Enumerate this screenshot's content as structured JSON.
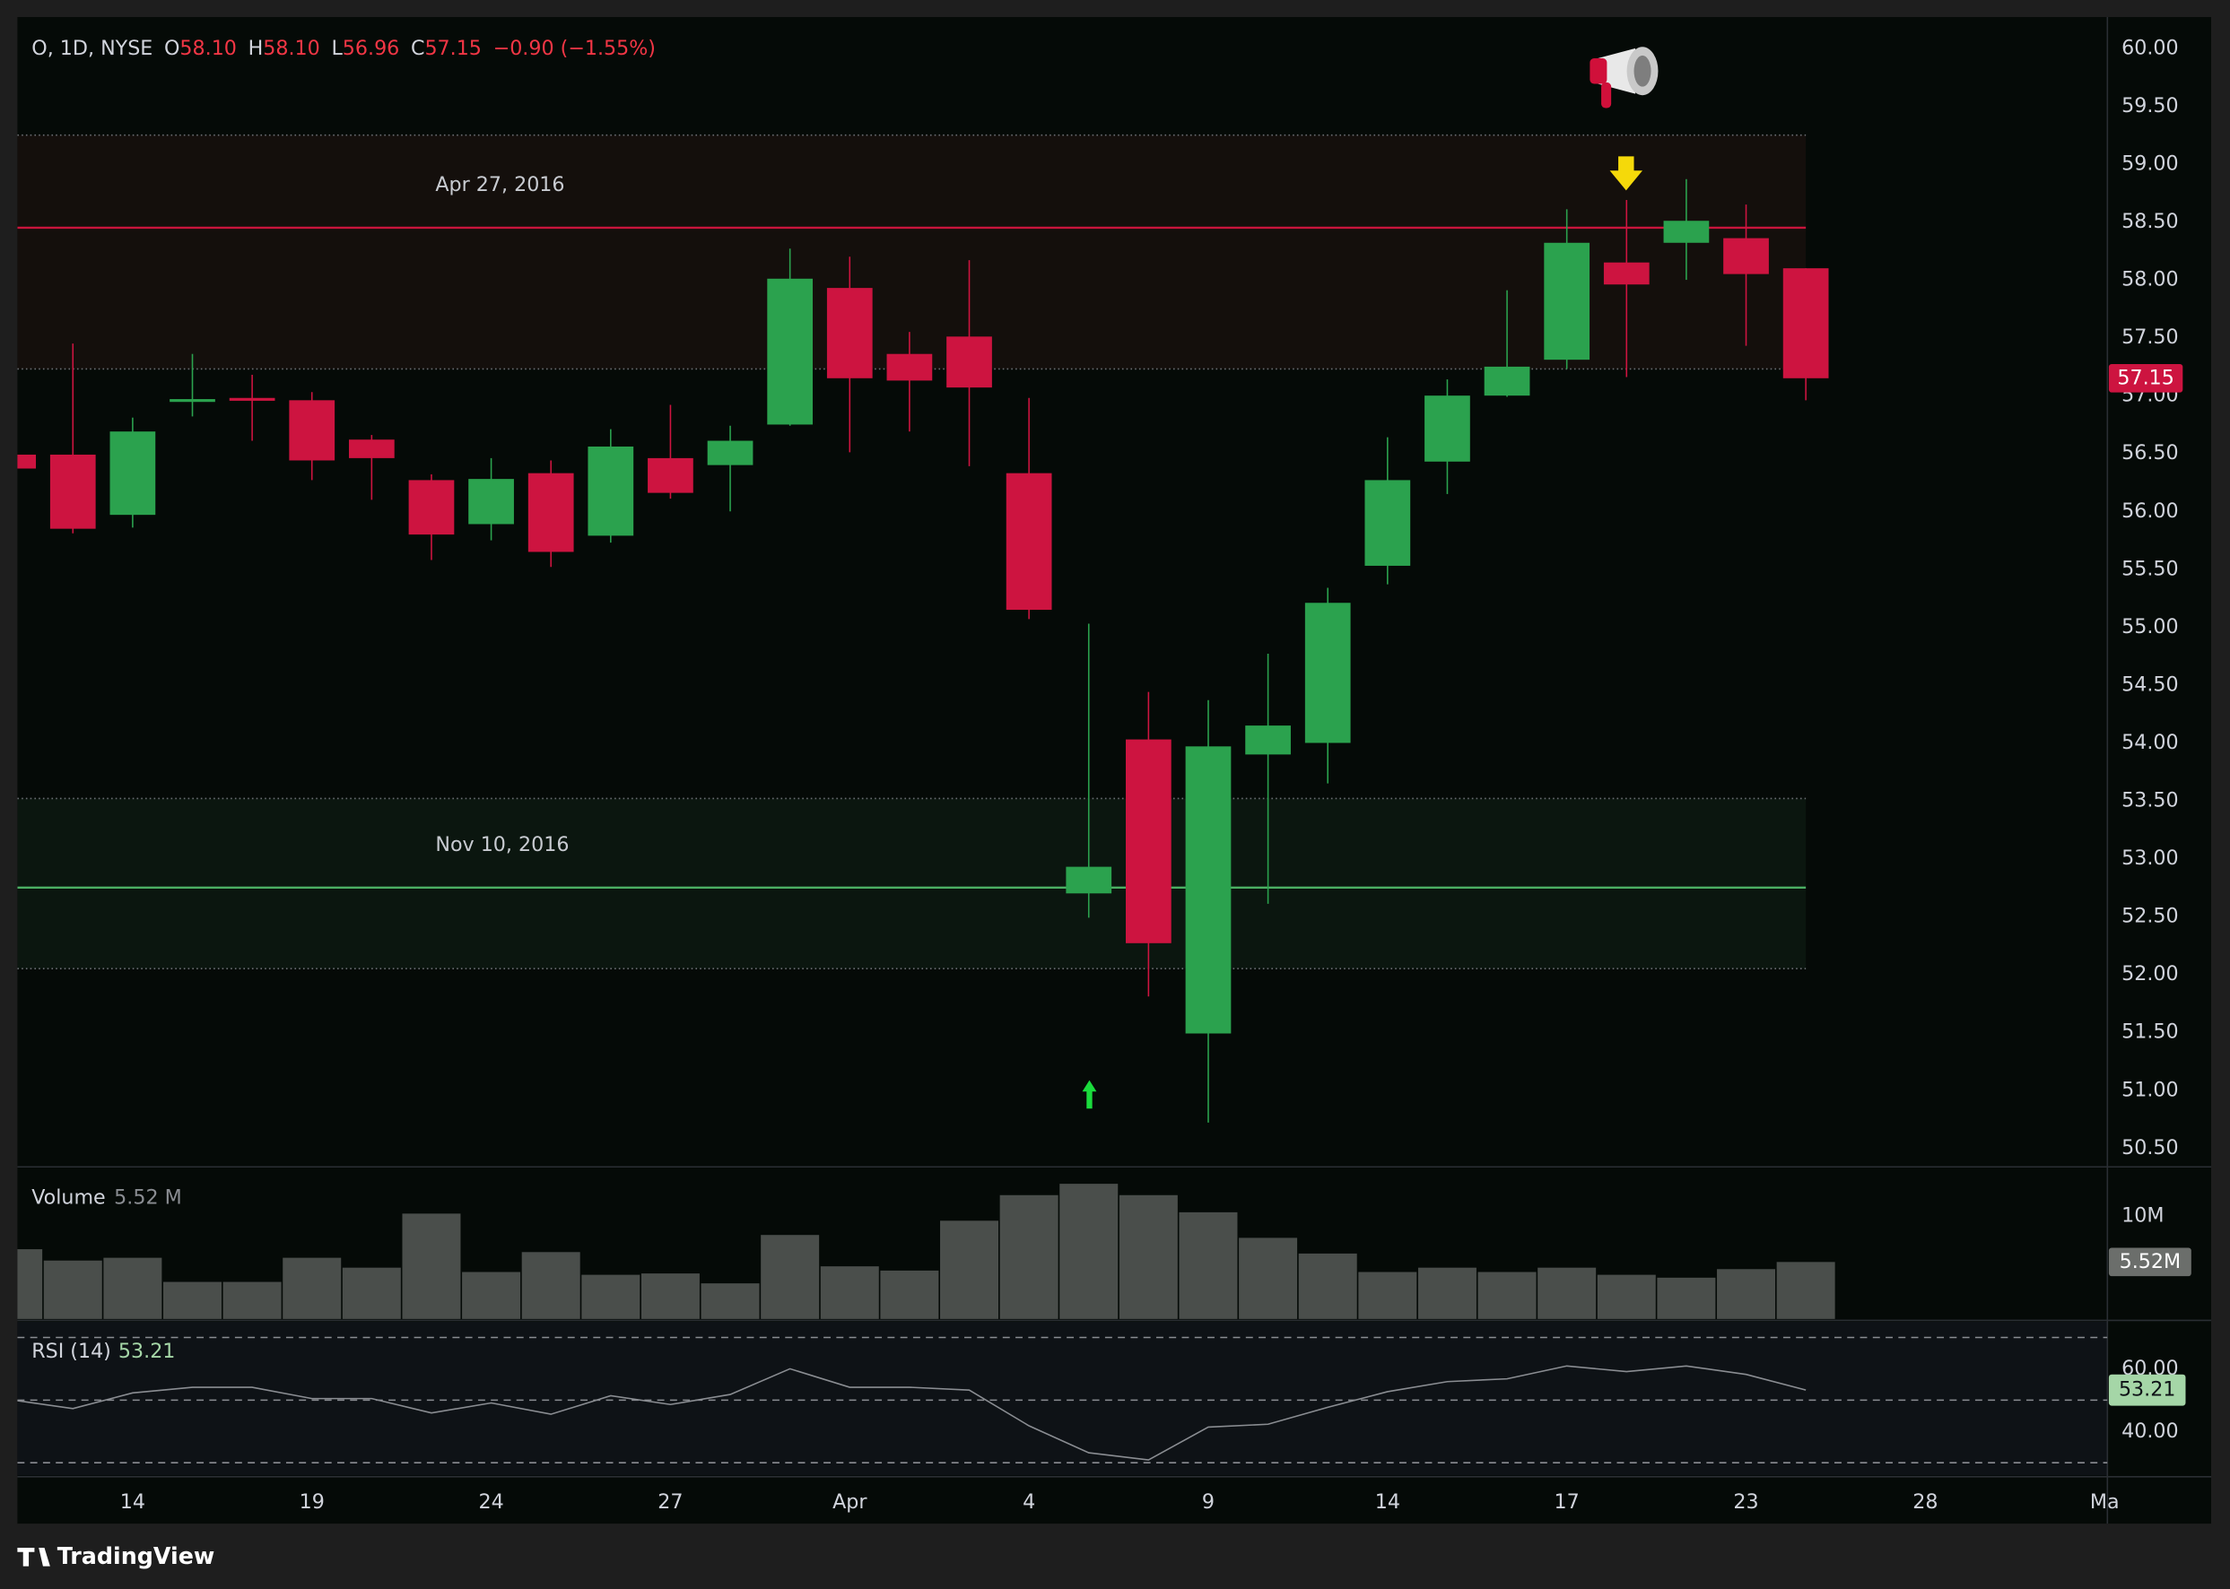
{
  "header": {
    "symbol": "O, 1D, NYSE",
    "open_label": "O",
    "open": "58.10",
    "high_label": "H",
    "high": "58.10",
    "low_label": "L",
    "low": "56.96",
    "close_label": "C",
    "close": "57.15",
    "change": "−0.90 (−1.55%)"
  },
  "chart_data": [
    {
      "type": "candlestick",
      "categories": [
        null,
        null,
        "14",
        null,
        null,
        "19",
        null,
        null,
        "24",
        null,
        null,
        "27",
        null,
        null,
        "Apr",
        null,
        null,
        "4",
        null,
        null,
        "9",
        null,
        null,
        "14",
        null,
        null,
        "17",
        null,
        null,
        "23",
        null,
        null,
        "28",
        null,
        null,
        "Ma"
      ],
      "open": [
        56.49,
        56.49,
        55.97,
        56.95,
        56.98,
        56.96,
        56.62,
        56.27,
        55.89,
        56.33,
        55.79,
        56.46,
        56.4,
        56.75,
        57.93,
        57.36,
        57.51,
        56.33,
        52.7,
        54.03,
        51.49,
        53.9,
        54.0,
        55.53,
        56.43,
        57.0,
        57.31,
        58.15,
        58.32,
        58.36,
        58.1,
        null,
        null,
        null,
        null,
        null
      ],
      "high": [
        56.52,
        57.45,
        56.81,
        57.36,
        57.18,
        57.03,
        56.66,
        56.32,
        56.46,
        56.44,
        56.71,
        56.92,
        56.74,
        58.27,
        58.2,
        57.55,
        58.17,
        56.98,
        55.03,
        54.44,
        54.37,
        54.77,
        55.34,
        56.64,
        57.14,
        57.91,
        58.61,
        58.69,
        58.87,
        58.65,
        58.1,
        null,
        null,
        null,
        null,
        null
      ],
      "low": [
        56.35,
        55.81,
        55.86,
        56.82,
        56.61,
        56.27,
        56.1,
        55.58,
        55.75,
        55.52,
        55.73,
        56.11,
        56.0,
        56.74,
        56.51,
        56.69,
        56.39,
        55.07,
        52.49,
        51.81,
        50.72,
        52.61,
        53.65,
        55.37,
        56.15,
        56.99,
        57.23,
        57.16,
        58.0,
        57.43,
        56.96,
        null,
        null,
        null,
        null,
        null
      ],
      "close": [
        56.37,
        55.85,
        56.69,
        56.97,
        56.96,
        56.44,
        56.46,
        55.8,
        56.28,
        55.65,
        56.56,
        56.16,
        56.61,
        58.01,
        57.15,
        57.13,
        57.07,
        55.15,
        52.93,
        52.27,
        53.97,
        54.15,
        55.21,
        56.27,
        57.0,
        57.25,
        58.32,
        57.96,
        58.51,
        58.05,
        57.15,
        null,
        null,
        null,
        null,
        null
      ],
      "last_label": "57.15",
      "up_color": "#2ba24e",
      "down_color": "#cd1440",
      "ylim": [
        50.35,
        60.27
      ],
      "yticks": [
        {
          "value": 50.5,
          "label": "50.50"
        },
        {
          "value": 51,
          "label": "51.00"
        },
        {
          "value": 51.5,
          "label": "51.50"
        },
        {
          "value": 52,
          "label": "52.00"
        },
        {
          "value": 52.5,
          "label": "52.50"
        },
        {
          "value": 53,
          "label": "53.00"
        },
        {
          "value": 53.5,
          "label": "53.50"
        },
        {
          "value": 54,
          "label": "54.00"
        },
        {
          "value": 54.5,
          "label": "54.50"
        },
        {
          "value": 55,
          "label": "55.00"
        },
        {
          "value": 55.5,
          "label": "55.50"
        },
        {
          "value": 56,
          "label": "56.00"
        },
        {
          "value": 56.5,
          "label": "56.50"
        },
        {
          "value": 57,
          "label": "57.00"
        },
        {
          "value": 57.5,
          "label": "57.50"
        },
        {
          "value": 58,
          "label": "58.00"
        },
        {
          "value": 58.5,
          "label": "58.50"
        },
        {
          "value": 59,
          "label": "59.00"
        },
        {
          "value": 59.5,
          "label": "59.50"
        },
        {
          "value": 60,
          "label": "60.00"
        }
      ],
      "zones": [
        {
          "label": "Apr 27, 2016",
          "top": 59.25,
          "level": 58.45,
          "bottom": 57.23,
          "color": "#c8143c",
          "fill": "#140f0c"
        },
        {
          "label": "Nov 10, 2016",
          "top": 53.52,
          "level": 52.75,
          "bottom": 52.05,
          "color": "#4caf63",
          "fill": "#0b160f"
        }
      ]
    },
    {
      "type": "bar",
      "title": "Volume",
      "value_label": "5.52 M",
      "tag": "5.52M",
      "values": [
        6.76,
        5.66,
        5.93,
        3.59,
        3.59,
        5.93,
        4.97,
        10.21,
        4.55,
        6.48,
        4.28,
        4.41,
        3.45,
        8.14,
        5.1,
        4.69,
        9.52,
        12.0,
        13.1,
        12.0,
        10.34,
        7.86,
        6.34,
        4.55,
        4.97,
        4.55,
        4.97,
        4.28,
        4.0,
        4.83,
        5.52,
        null,
        null,
        null,
        null,
        null
      ],
      "color": "#4a4e4b",
      "ylim": [
        0,
        14.6
      ],
      "yticks": [
        {
          "value": 10,
          "label": "10M"
        }
      ]
    },
    {
      "type": "line",
      "title": "RSI (14)",
      "value_label": "53.21",
      "values": [
        50.0,
        47.3,
        52.3,
        54.1,
        54.1,
        50.5,
        50.5,
        45.9,
        49.1,
        45.5,
        51.4,
        48.6,
        51.8,
        60.0,
        54.1,
        54.1,
        53.2,
        41.8,
        33.2,
        30.9,
        41.4,
        42.3,
        47.7,
        52.7,
        55.9,
        56.8,
        60.9,
        59.1,
        60.9,
        58.2,
        53.21,
        null,
        null,
        null,
        null,
        null
      ],
      "color": "#8a8d92",
      "ylim": [
        26,
        75
      ],
      "yticks": [
        {
          "value": 40,
          "label": "40.00"
        },
        {
          "value": 60,
          "label": "60.00"
        }
      ],
      "bands": [
        70,
        50,
        30
      ]
    }
  ],
  "footer": {
    "brand": "TradingView"
  }
}
